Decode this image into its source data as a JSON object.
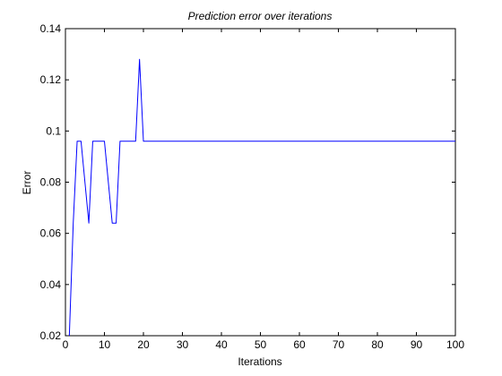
{
  "chart_data": {
    "type": "line",
    "title": "Prediction error over iterations",
    "xlabel": "Iterations",
    "ylabel": "Error",
    "xlim": [
      0,
      100
    ],
    "ylim": [
      0.02,
      0.14
    ],
    "xticks": [
      0,
      10,
      20,
      30,
      40,
      50,
      60,
      70,
      80,
      90,
      100
    ],
    "yticks": [
      0.02,
      0.04,
      0.06,
      0.08,
      0.1,
      0.12,
      0.14
    ],
    "xtick_labels": [
      "0",
      "10",
      "20",
      "30",
      "40",
      "50",
      "60",
      "70",
      "80",
      "90",
      "100"
    ],
    "ytick_labels": [
      "0.02",
      "0.04",
      "0.06",
      "0.08",
      "0.1",
      "0.12",
      "0.14"
    ],
    "grid": false,
    "series": [
      {
        "color": "#0000ff",
        "x": [
          1,
          2,
          3,
          4,
          5,
          6,
          7,
          8,
          9,
          10,
          11,
          12,
          13,
          14,
          15,
          16,
          17,
          18,
          19,
          20,
          21,
          22,
          23,
          24,
          25,
          26,
          27,
          28,
          29,
          30,
          31,
          32,
          33,
          34,
          35,
          36,
          37,
          38,
          39,
          40,
          41,
          42,
          43,
          44,
          45,
          46,
          47,
          48,
          49,
          50,
          51,
          52,
          53,
          54,
          55,
          56,
          57,
          58,
          59,
          60,
          61,
          62,
          63,
          64,
          65,
          66,
          67,
          68,
          69,
          70,
          71,
          72,
          73,
          74,
          75,
          76,
          77,
          78,
          79,
          80,
          81,
          82,
          83,
          84,
          85,
          86,
          87,
          88,
          89,
          90,
          91,
          92,
          93,
          94,
          95,
          96,
          97,
          98,
          99,
          100
        ],
        "y": [
          0.02,
          0.064,
          0.096,
          0.096,
          0.08,
          0.064,
          0.096,
          0.096,
          0.096,
          0.096,
          0.08,
          0.064,
          0.064,
          0.096,
          0.096,
          0.096,
          0.096,
          0.096,
          0.128,
          0.096,
          0.096,
          0.096,
          0.096,
          0.096,
          0.096,
          0.096,
          0.096,
          0.096,
          0.096,
          0.096,
          0.096,
          0.096,
          0.096,
          0.096,
          0.096,
          0.096,
          0.096,
          0.096,
          0.096,
          0.096,
          0.096,
          0.096,
          0.096,
          0.096,
          0.096,
          0.096,
          0.096,
          0.096,
          0.096,
          0.096,
          0.096,
          0.096,
          0.096,
          0.096,
          0.096,
          0.096,
          0.096,
          0.096,
          0.096,
          0.096,
          0.096,
          0.096,
          0.096,
          0.096,
          0.096,
          0.096,
          0.096,
          0.096,
          0.096,
          0.096,
          0.096,
          0.096,
          0.096,
          0.096,
          0.096,
          0.096,
          0.096,
          0.096,
          0.096,
          0.096,
          0.096,
          0.096,
          0.096,
          0.096,
          0.096,
          0.096,
          0.096,
          0.096,
          0.096,
          0.096,
          0.096,
          0.096,
          0.096,
          0.096,
          0.096,
          0.096,
          0.096,
          0.096,
          0.096,
          0.096
        ]
      }
    ]
  }
}
